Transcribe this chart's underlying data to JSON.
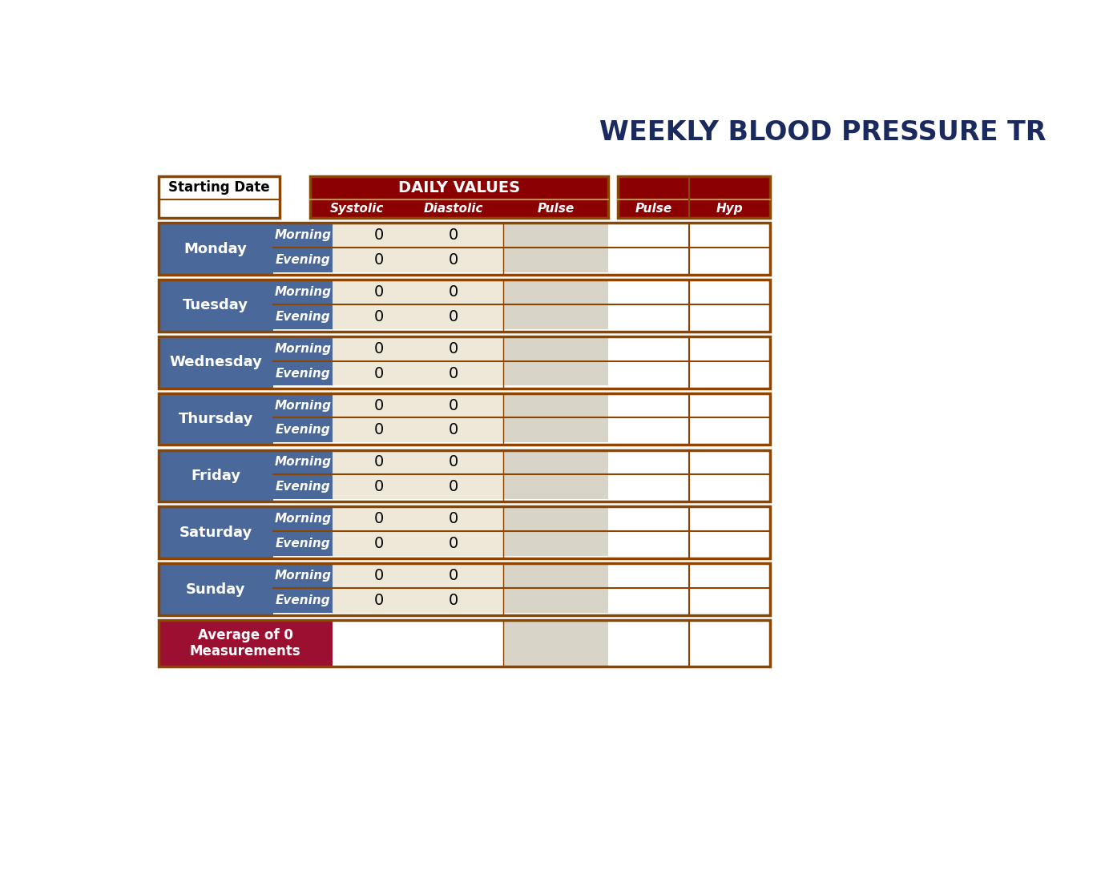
{
  "title": "WEEKLY BLOOD PRESSURE TR",
  "title_color": "#1a2a5e",
  "title_fontsize": 24,
  "background_color": "#ffffff",
  "border_color": "#8B4500",
  "dark_red": "#8B0000",
  "crimson": "#9B1030",
  "steel_blue": "#4a6899",
  "white": "#ffffff",
  "cream": "#ede8d8",
  "days": [
    "Monday",
    "Tuesday",
    "Wednesday",
    "Thursday",
    "Friday",
    "Saturday",
    "Sunday"
  ],
  "sessions": [
    "Morning",
    "Evening"
  ],
  "starting_date_label": "Starting Date",
  "daily_values_label": "DAILY VALUES",
  "average_label": "Average of 0\nMeasurements"
}
